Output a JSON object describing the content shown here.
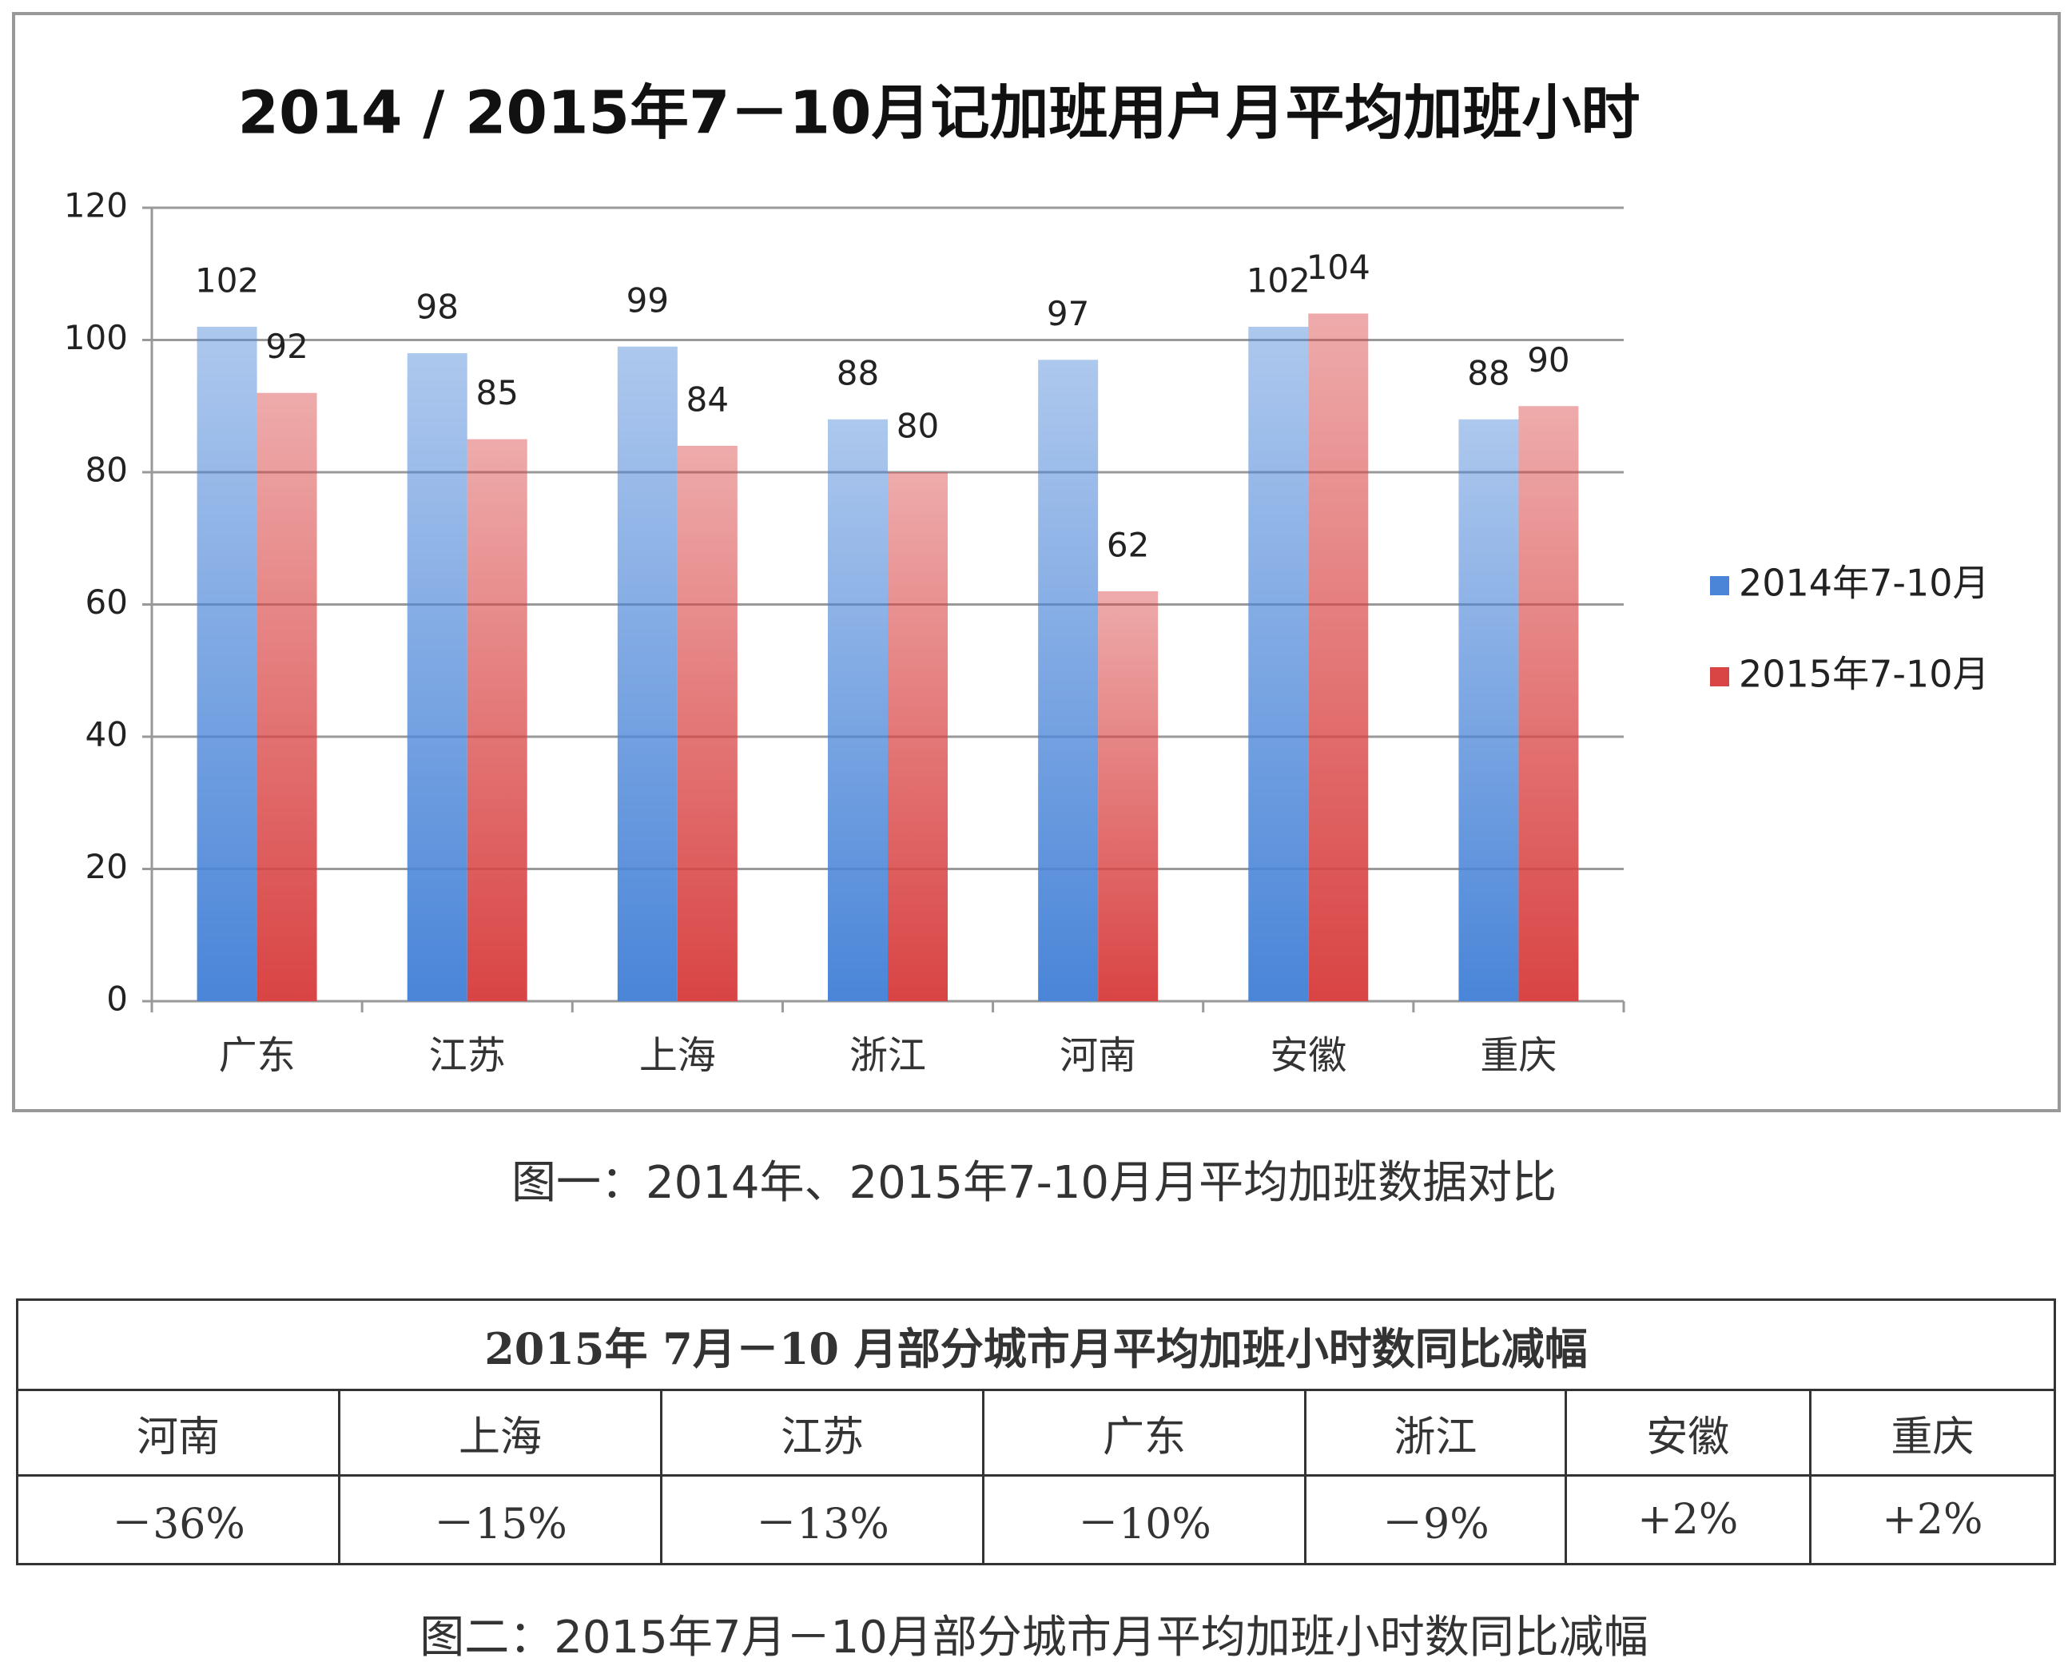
{
  "chart_data": {
    "type": "bar",
    "title": "2014 / 2015年7－10月记加班用户月平均加班小时",
    "categories": [
      "广东",
      "江苏",
      "上海",
      "浙江",
      "河南",
      "安徽",
      "重庆"
    ],
    "series": [
      {
        "name": "2014年7-10月",
        "color": "#4a85d8",
        "values": [
          102,
          98,
          99,
          88,
          97,
          102,
          88
        ]
      },
      {
        "name": "2015年7-10月",
        "color": "#d94444",
        "values": [
          92,
          85,
          84,
          80,
          62,
          104,
          90
        ]
      }
    ],
    "ylim": [
      0,
      120
    ],
    "yticks": [
      0,
      20,
      40,
      60,
      80,
      100,
      120
    ],
    "grid": true,
    "legend": "right"
  },
  "caption1": "图一：2014年、2015年7-10月月平均加班数据对比",
  "table": {
    "title": "2015年 7月－10 月部分城市月平均加班小时数同比减幅",
    "header": [
      "河南",
      "上海",
      "江苏",
      "广东",
      "浙江",
      "安徽",
      "重庆"
    ],
    "rows": [
      [
        "－36%",
        "－15%",
        "－13%",
        "－10%",
        "－9%",
        "+2%",
        "+2%"
      ]
    ]
  },
  "caption2": "图二：2015年7月－10月部分城市月平均加班小时数同比减幅"
}
